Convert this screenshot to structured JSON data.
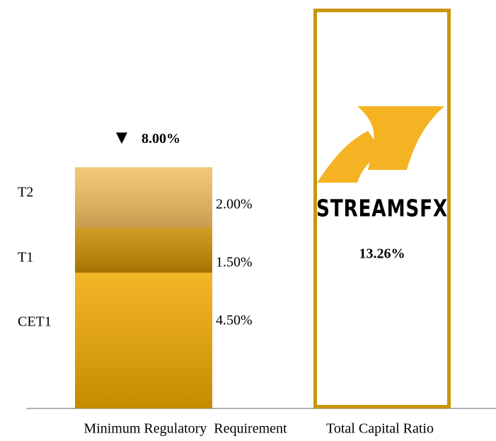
{
  "chart_data": {
    "type": "stacked_bar",
    "categories": [
      "Minimum Regulatory  Requirement",
      "Total Capital Ratio"
    ],
    "series": [
      {
        "name": "CET1",
        "color": "#f0a800",
        "values": [
          4.5,
          null
        ],
        "value_labels": [
          "4.50%",
          null
        ]
      },
      {
        "name": "T1",
        "color": "#c98c00",
        "values": [
          1.5,
          null
        ],
        "value_labels": [
          "1.50%",
          null
        ]
      },
      {
        "name": "T2",
        "color": "#f2c060",
        "values": [
          2.0,
          null
        ],
        "value_labels": [
          "2.00%",
          null
        ]
      }
    ],
    "totals": {
      "values": [
        8.0,
        13.26
      ],
      "value_labels": [
        "8.00%",
        "13.26%"
      ],
      "color": "#c8960a"
    },
    "logo_text": "STREAMSFX",
    "ylim": [
      0,
      13.5
    ]
  }
}
